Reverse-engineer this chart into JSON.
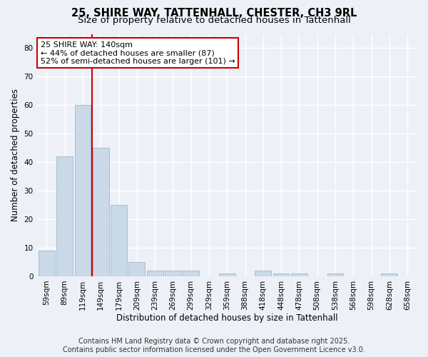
{
  "title1": "25, SHIRE WAY, TATTENHALL, CHESTER, CH3 9RL",
  "title2": "Size of property relative to detached houses in Tattenhall",
  "xlabel": "Distribution of detached houses by size in Tattenhall",
  "ylabel": "Number of detached properties",
  "categories": [
    "59sqm",
    "89sqm",
    "119sqm",
    "149sqm",
    "179sqm",
    "209sqm",
    "239sqm",
    "269sqm",
    "299sqm",
    "329sqm",
    "359sqm",
    "388sqm",
    "418sqm",
    "448sqm",
    "478sqm",
    "508sqm",
    "538sqm",
    "568sqm",
    "598sqm",
    "628sqm",
    "658sqm"
  ],
  "values": [
    9,
    42,
    60,
    45,
    25,
    5,
    2,
    2,
    2,
    0,
    1,
    0,
    2,
    1,
    1,
    0,
    1,
    0,
    0,
    1,
    0
  ],
  "bar_color": "#c9d9e8",
  "bar_edge_color": "#a0b8cc",
  "vline_x": 2.5,
  "vline_color": "#cc0000",
  "annotation_line1": "25 SHIRE WAY: 140sqm",
  "annotation_line2": "← 44% of detached houses are smaller (87)",
  "annotation_line3": "52% of semi-detached houses are larger (101) →",
  "annotation_box_color": "#ffffff",
  "annotation_box_edge": "#cc0000",
  "ylim": [
    0,
    85
  ],
  "yticks": [
    0,
    10,
    20,
    30,
    40,
    50,
    60,
    70,
    80
  ],
  "footer1": "Contains HM Land Registry data © Crown copyright and database right 2025.",
  "footer2": "Contains public sector information licensed under the Open Government Licence v3.0.",
  "bg_color": "#edf1f7",
  "plot_bg_color": "#edf1f7",
  "grid_color": "#ffffff",
  "title_fontsize": 10.5,
  "subtitle_fontsize": 9.5,
  "axis_label_fontsize": 8.5,
  "tick_fontsize": 7.5,
  "annotation_fontsize": 8,
  "footer_fontsize": 7
}
